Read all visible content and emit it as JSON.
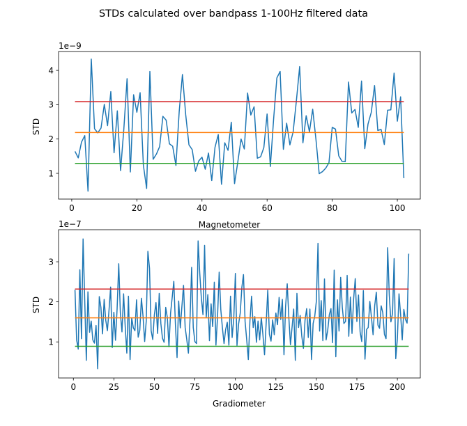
{
  "figure": {
    "title": "STDs calculated over bandpass 1-100Hz filtered data"
  },
  "chart_data": [
    {
      "type": "line",
      "title": "",
      "xlabel": "Magnetometer",
      "ylabel": "STD",
      "scale_label": "1e−9",
      "xlim": [
        -4.05,
        107.05
      ],
      "ylim": [
        0.25,
        4.55
      ],
      "xticks": [
        0,
        20,
        40,
        60,
        80,
        100
      ],
      "xtick_labels": [
        "0",
        "20",
        "40",
        "60",
        "80",
        "100"
      ],
      "yticks": [
        1,
        2,
        3,
        4
      ],
      "ytick_labels": [
        "1",
        "2",
        "3",
        "4"
      ],
      "grid": false,
      "x_start": 1,
      "x_step": 1,
      "series": [
        {
          "color": "#1f77b4",
          "values": [
            1.64,
            1.45,
            1.91,
            2.1,
            0.48,
            4.33,
            2.3,
            2.18,
            2.32,
            3.01,
            2.39,
            3.38,
            1.6,
            2.82,
            1.08,
            2.29,
            3.76,
            1.04,
            3.29,
            2.78,
            3.35,
            1.24,
            0.56,
            3.97,
            1.41,
            1.56,
            1.78,
            2.66,
            2.55,
            1.86,
            1.79,
            1.23,
            2.8,
            3.88,
            2.71,
            1.83,
            1.69,
            1.06,
            1.36,
            1.47,
            1.12,
            1.59,
            0.79,
            1.76,
            2.13,
            0.68,
            1.89,
            1.67,
            2.49,
            0.7,
            1.33,
            2.0,
            1.71,
            3.34,
            2.7,
            2.94,
            1.44,
            1.48,
            1.75,
            2.73,
            1.2,
            2.58,
            3.78,
            3.97,
            1.7,
            2.46,
            1.83,
            2.21,
            3.12,
            4.11,
            1.89,
            2.68,
            2.21,
            2.87,
            1.99,
            0.99,
            1.05,
            1.15,
            1.31,
            2.34,
            2.29,
            1.51,
            1.35,
            1.34,
            3.66,
            2.76,
            2.86,
            2.34,
            3.69,
            1.72,
            2.44,
            2.78,
            3.56,
            2.25,
            2.28,
            1.84,
            2.84,
            2.85,
            3.92,
            2.52,
            3.23,
            0.86
          ]
        },
        {
          "color": "#d62728",
          "constant": 3.09
        },
        {
          "color": "#ff7f0e",
          "constant": 2.19
        },
        {
          "color": "#2ca02c",
          "constant": 1.29
        }
      ]
    },
    {
      "type": "line",
      "title": "",
      "xlabel": "Gradiometer",
      "ylabel": "STD",
      "scale_label": "1e−7",
      "xlim": [
        -9.15,
        214.15
      ],
      "ylim": [
        0.1,
        3.8
      ],
      "xticks": [
        0,
        25,
        50,
        75,
        100,
        125,
        150,
        175,
        200
      ],
      "xtick_labels": [
        "0",
        "25",
        "50",
        "75",
        "100",
        "125",
        "150",
        "175",
        "200"
      ],
      "yticks": [
        1,
        2,
        3
      ],
      "ytick_labels": [
        "1",
        "2",
        "3"
      ],
      "grid": false,
      "x_start": 1,
      "x_step": 1,
      "series": [
        {
          "color": "#1f77b4",
          "values": [
            2.3,
            1.05,
            0.82,
            2.8,
            1.08,
            3.57,
            2.05,
            0.54,
            2.25,
            1.24,
            1.52,
            1.05,
            0.97,
            1.41,
            0.33,
            2.13,
            1.86,
            1.2,
            2.06,
            1.54,
            1.28,
            1.79,
            2.37,
            0.86,
            1.74,
            1.04,
            1.83,
            2.95,
            1.72,
            1.25,
            2.2,
            1.38,
            0.72,
            2.14,
            0.56,
            1.6,
            1.35,
            1.28,
            2.05,
            1.12,
            1.29,
            2.09,
            1.64,
            1.01,
            1.53,
            3.26,
            2.84,
            1.28,
            1.06,
            1.68,
            1.98,
            1.21,
            2.21,
            1.46,
            1.09,
            0.99,
            1.86,
            1.61,
            0.88,
            1.72,
            2.11,
            2.51,
            1.43,
            0.61,
            2.02,
            1.35,
            1.89,
            2.41,
            1.36,
            1.06,
            0.72,
            1.55,
            2.86,
            1.36,
            1.01,
            0.96,
            3.52,
            2.72,
            2.09,
            1.68,
            3.41,
            1.61,
            2.18,
            1.03,
            1.95,
            1.38,
            2.49,
            0.92,
            1.63,
            2.74,
            1.81,
            1.35,
            0.96,
            1.31,
            1.49,
            0.92,
            2.14,
            1.11,
            1.58,
            2.71,
            0.91,
            1.45,
            1.72,
            2.36,
            2.68,
            1.51,
            1.05,
            0.56,
            1.53,
            2.14,
            1.36,
            1.63,
            0.99,
            1.52,
            1.05,
            1.61,
            1.18,
            0.68,
            1.46,
            2.29,
            1.19,
            1.02,
            1.55,
            1.18,
            1.72,
            1.43,
            2.11,
            1.56,
            2.06,
            0.68,
            1.89,
            2.45,
            1.61,
            0.93,
            1.37,
            1.82,
            0.54,
            2.21,
            1.36,
            1.66,
            1.14,
            0.84,
            1.54,
            1.83,
            1.11,
            1.82,
            0.56,
            1.46,
            1.64,
            2.02,
            3.46,
            1.27,
            2.03,
            1.03,
            2.57,
            1.05,
            1.29,
            1.68,
            1.83,
            0.98,
            2.79,
            0.63,
            2.05,
            1.27,
            2.61,
            1.86,
            1.46,
            1.51,
            2.66,
            1.14,
            2.12,
            1.21,
            2.08,
            2.58,
            1.51,
            2.17,
            1.25,
            1.01,
            2.28,
            0.57,
            1.31,
            1.36,
            2.01,
            1.61,
            1.18,
            1.9,
            2.24,
            1.42,
            1.34,
            1.9,
            1.73,
            1.19,
            1.08,
            3.35,
            2.17,
            1.5,
            1.71,
            3.08,
            0.58,
            1.08,
            2.2,
            1.68,
            1.05,
            1.81,
            1.56,
            1.47,
            3.2
          ]
        },
        {
          "color": "#d62728",
          "constant": 2.32
        },
        {
          "color": "#ff7f0e",
          "constant": 1.6
        },
        {
          "color": "#2ca02c",
          "constant": 0.89
        }
      ]
    }
  ]
}
